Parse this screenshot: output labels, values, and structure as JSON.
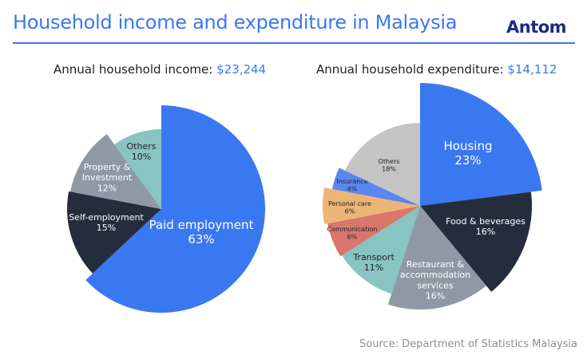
{
  "title": "Household income and expenditure in Malaysia",
  "logo": "Antom",
  "source": "Source: Department of Statistics Malaysia",
  "chart_data": [
    {
      "type": "pie",
      "title": "Annual household income:",
      "total": "$23,244",
      "slices": [
        {
          "label": "Paid employment",
          "value": 63,
          "pct": "63%",
          "color": "#3a78f2"
        },
        {
          "label": "Self-employment",
          "value": 15,
          "pct": "15%",
          "color": "#252d3d"
        },
        {
          "label": "Property & Investment",
          "value": 12,
          "pct": "12%",
          "color": "#8f99a5"
        },
        {
          "label": "Others",
          "value": 10,
          "pct": "10%",
          "color": "#88c4c2"
        }
      ]
    },
    {
      "type": "pie",
      "title": "Annual household expenditure:",
      "total": "$14,112",
      "slices": [
        {
          "label": "Housing",
          "value": 23,
          "pct": "23%",
          "color": "#3a78f2"
        },
        {
          "label": "Food & beverages",
          "value": 16,
          "pct": "16%",
          "color": "#252d3d"
        },
        {
          "label": "Restaurant & accommodation services",
          "value": 16,
          "pct": "16%",
          "color": "#8f99a5"
        },
        {
          "label": "Transport",
          "value": 11,
          "pct": "11%",
          "color": "#88c4c2"
        },
        {
          "label": "Communication",
          "value": 6,
          "pct": "6%",
          "color": "#d9766d"
        },
        {
          "label": "Personal care",
          "value": 6,
          "pct": "6%",
          "color": "#eab576"
        },
        {
          "label": "Insurance",
          "value": 4,
          "pct": "4%",
          "color": "#5b86ee"
        },
        {
          "label": "Others",
          "value": 18,
          "pct": "18%",
          "color": "#c4c4c4"
        }
      ]
    }
  ]
}
